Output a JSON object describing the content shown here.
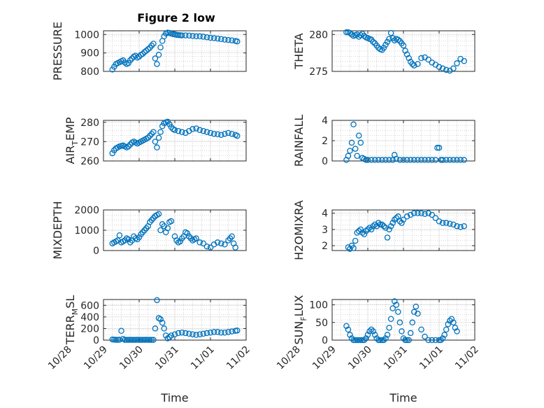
{
  "figure": {
    "title": "Figure 2 low",
    "background": "#ffffff",
    "marker_color": "#0072BD",
    "axis_color": "#262626",
    "grid_color": "#b0b0b0"
  },
  "chart_data": [
    {
      "type": "scatter",
      "id": "pressure",
      "title": "Figure 2 low",
      "ylabel": "PRESSURE",
      "ylim": [
        800,
        1020
      ],
      "yticks": [
        800,
        900,
        1000
      ],
      "ytick_labels": [
        "800",
        "900",
        "1000"
      ],
      "xlim": [
        0,
        4
      ],
      "xtick_labels": [],
      "xlabel": "",
      "grid": true,
      "series": [
        {
          "x": [
            0.25,
            0.3,
            0.35,
            0.4,
            0.45,
            0.5,
            0.55,
            0.6,
            0.65,
            0.7,
            0.75,
            0.8,
            0.85,
            0.9,
            0.95,
            1.0,
            1.05,
            1.1,
            1.15,
            1.2,
            1.25,
            1.3,
            1.35,
            1.4,
            1.45,
            1.5,
            1.55,
            1.6,
            1.65,
            1.7,
            1.75,
            1.8,
            1.85,
            1.9,
            1.95,
            2.0,
            2.05,
            2.1,
            2.15,
            2.2,
            2.3,
            2.4,
            2.5,
            2.6,
            2.7,
            2.8,
            2.9,
            3.0,
            3.1,
            3.2,
            3.3,
            3.4,
            3.5,
            3.6,
            3.7,
            3.75
          ],
          "y": [
            810,
            825,
            840,
            845,
            850,
            855,
            860,
            848,
            840,
            845,
            860,
            870,
            880,
            885,
            875,
            880,
            890,
            895,
            905,
            912,
            920,
            928,
            940,
            950,
            870,
            840,
            890,
            930,
            965,
            990,
            1005,
            1010,
            1008,
            1005,
            1002,
            1000,
            998,
            997,
            996,
            995,
            995,
            994,
            992,
            990,
            990,
            988,
            985,
            982,
            980,
            978,
            975,
            972,
            970,
            968,
            965,
            962
          ]
        }
      ]
    },
    {
      "type": "scatter",
      "id": "theta",
      "ylabel": "THETA",
      "ylim": [
        275,
        280.5
      ],
      "yticks": [
        275,
        280
      ],
      "ytick_labels": [
        "275",
        "280"
      ],
      "xlim": [
        0,
        4
      ],
      "xtick_labels": [],
      "xlabel": "",
      "grid": true,
      "series": [
        {
          "x": [
            0.4,
            0.45,
            0.5,
            0.55,
            0.6,
            0.65,
            0.7,
            0.75,
            0.8,
            0.85,
            0.9,
            0.95,
            1.0,
            1.05,
            1.1,
            1.15,
            1.2,
            1.25,
            1.3,
            1.35,
            1.4,
            1.45,
            1.5,
            1.55,
            1.6,
            1.65,
            1.7,
            1.75,
            1.8,
            1.85,
            1.9,
            1.95,
            2.0,
            2.05,
            2.1,
            2.15,
            2.2,
            2.25,
            2.3,
            2.4,
            2.5,
            2.6,
            2.7,
            2.8,
            2.9,
            3.0,
            3.1,
            3.2,
            3.3,
            3.4,
            3.5,
            3.6,
            3.7
          ],
          "y": [
            280.3,
            280.3,
            280.2,
            280.0,
            279.8,
            279.9,
            280.0,
            279.7,
            279.9,
            280.1,
            279.8,
            279.6,
            279.5,
            279.4,
            279.3,
            279.0,
            278.8,
            278.5,
            278.2,
            278.0,
            277.9,
            278.2,
            278.6,
            279.0,
            279.4,
            280.2,
            279.5,
            279.2,
            279.4,
            279.3,
            279.1,
            278.8,
            278.5,
            277.8,
            277.3,
            276.8,
            276.3,
            276.0,
            275.8,
            276.0,
            276.8,
            276.9,
            276.6,
            276.2,
            275.9,
            275.6,
            275.4,
            275.2,
            275.1,
            275.4,
            276.1,
            276.7,
            276.4
          ]
        }
      ]
    },
    {
      "type": "scatter",
      "id": "air_temp",
      "ylabel_main": "AIR",
      "ylabel_sub": "T",
      "ylabel_rest": "EMP",
      "ylim": [
        260,
        281
      ],
      "yticks": [
        260,
        270,
        280
      ],
      "ytick_labels": [
        "260",
        "270",
        "280"
      ],
      "xlim": [
        0,
        4
      ],
      "xtick_labels": [],
      "xlabel": "",
      "grid": true,
      "series": [
        {
          "x": [
            0.25,
            0.3,
            0.35,
            0.4,
            0.45,
            0.5,
            0.55,
            0.6,
            0.65,
            0.7,
            0.75,
            0.8,
            0.85,
            0.9,
            0.95,
            1.0,
            1.05,
            1.1,
            1.15,
            1.2,
            1.25,
            1.3,
            1.35,
            1.4,
            1.45,
            1.5,
            1.55,
            1.6,
            1.65,
            1.7,
            1.75,
            1.8,
            1.85,
            1.9,
            1.95,
            2.0,
            2.1,
            2.2,
            2.3,
            2.4,
            2.5,
            2.6,
            2.7,
            2.8,
            2.9,
            3.0,
            3.1,
            3.2,
            3.3,
            3.4,
            3.5,
            3.6,
            3.7,
            3.75
          ],
          "y": [
            264,
            265.5,
            266.5,
            267,
            267.5,
            267.8,
            268,
            267.5,
            267,
            267.5,
            268.5,
            269.5,
            270,
            269.5,
            269,
            269.5,
            270,
            270.5,
            271,
            271.5,
            272,
            273,
            274,
            275,
            270,
            267,
            272,
            275,
            278,
            279.5,
            280,
            280.3,
            279,
            277.5,
            276.5,
            276,
            275.5,
            275,
            274.5,
            275.5,
            276.5,
            276.8,
            276,
            275.5,
            275,
            274.5,
            274,
            273.8,
            273.5,
            274,
            274.5,
            274,
            273.5,
            273
          ]
        }
      ]
    },
    {
      "type": "scatter",
      "id": "rainfall",
      "ylabel": "RAINFALL",
      "ylim": [
        0,
        4
      ],
      "yticks": [
        0,
        2,
        4
      ],
      "ytick_labels": [
        "0",
        "2",
        "4"
      ],
      "xlim": [
        0,
        4
      ],
      "xtick_labels": [],
      "xlabel": "",
      "grid": true,
      "series": [
        {
          "x": [
            0.4,
            0.45,
            0.5,
            0.55,
            0.6,
            0.65,
            0.7,
            0.75,
            0.8,
            0.85,
            0.9,
            0.95,
            1.0,
            1.1,
            1.2,
            1.3,
            1.4,
            1.5,
            1.6,
            1.7,
            1.75,
            1.8,
            1.9,
            2.0,
            2.1,
            2.2,
            2.3,
            2.4,
            2.5,
            2.6,
            2.7,
            2.8,
            2.9,
            2.95,
            3.0,
            3.05,
            3.1,
            3.2,
            3.3,
            3.4,
            3.5,
            3.6,
            3.7
          ],
          "y": [
            0.1,
            0.5,
            1.0,
            1.8,
            3.6,
            1.2,
            0.5,
            2.5,
            1.8,
            0.3,
            0.2,
            0.1,
            0.1,
            0.1,
            0.1,
            0.1,
            0.1,
            0.1,
            0.1,
            0.1,
            0.6,
            0.2,
            0.1,
            0.1,
            0.1,
            0.1,
            0.1,
            0.1,
            0.1,
            0.1,
            0.1,
            0.1,
            0.1,
            1.3,
            1.3,
            0.1,
            0.1,
            0.1,
            0.1,
            0.1,
            0.1,
            0.1,
            0.1
          ]
        }
      ]
    },
    {
      "type": "scatter",
      "id": "mixdepth",
      "ylabel": "MIXDEPTH",
      "ylim": [
        0,
        2000
      ],
      "yticks": [
        0,
        1000,
        2000
      ],
      "ytick_labels": [
        "0",
        "1000",
        "2000"
      ],
      "xlim": [
        0,
        4
      ],
      "xtick_labels": [],
      "xlabel": "",
      "grid": true,
      "series": [
        {
          "x": [
            0.25,
            0.3,
            0.35,
            0.4,
            0.45,
            0.5,
            0.55,
            0.6,
            0.65,
            0.7,
            0.75,
            0.8,
            0.85,
            0.9,
            0.95,
            1.0,
            1.05,
            1.1,
            1.15,
            1.2,
            1.25,
            1.3,
            1.35,
            1.4,
            1.45,
            1.5,
            1.55,
            1.6,
            1.65,
            1.7,
            1.75,
            1.8,
            1.85,
            1.9,
            2.0,
            2.05,
            2.1,
            2.15,
            2.2,
            2.25,
            2.3,
            2.35,
            2.4,
            2.45,
            2.5,
            2.55,
            2.6,
            2.7,
            2.8,
            2.9,
            3.0,
            3.1,
            3.2,
            3.3,
            3.4,
            3.5,
            3.55,
            3.6,
            3.65,
            3.7
          ],
          "y": [
            350,
            400,
            450,
            500,
            750,
            400,
            450,
            500,
            600,
            550,
            400,
            500,
            700,
            600,
            550,
            650,
            800,
            900,
            1000,
            1100,
            1200,
            1400,
            1500,
            1600,
            1700,
            1750,
            1800,
            1000,
            1300,
            1200,
            900,
            1100,
            1400,
            1450,
            700,
            500,
            400,
            450,
            600,
            700,
            900,
            850,
            700,
            600,
            500,
            550,
            600,
            400,
            350,
            200,
            150,
            300,
            400,
            350,
            300,
            500,
            600,
            700,
            350,
            150
          ]
        }
      ]
    },
    {
      "type": "scatter",
      "id": "h2omixra",
      "ylabel": "H2OMIXRA",
      "ylim": [
        1.7,
        4.2
      ],
      "yticks": [
        2,
        3,
        4
      ],
      "ytick_labels": [
        "2",
        "3",
        "4"
      ],
      "xlim": [
        0,
        4
      ],
      "xtick_labels": [],
      "xlabel": "",
      "grid": true,
      "series": [
        {
          "x": [
            0.45,
            0.5,
            0.55,
            0.6,
            0.65,
            0.7,
            0.75,
            0.8,
            0.85,
            0.9,
            0.95,
            1.0,
            1.05,
            1.1,
            1.15,
            1.2,
            1.25,
            1.3,
            1.35,
            1.4,
            1.45,
            1.5,
            1.55,
            1.6,
            1.65,
            1.7,
            1.75,
            1.8,
            1.85,
            1.9,
            1.95,
            2.0,
            2.1,
            2.2,
            2.3,
            2.4,
            2.5,
            2.6,
            2.7,
            2.8,
            2.9,
            3.0,
            3.1,
            3.2,
            3.3,
            3.4,
            3.5,
            3.6,
            3.7
          ],
          "y": [
            1.9,
            1.8,
            2.0,
            1.85,
            2.3,
            2.8,
            2.9,
            3.0,
            2.8,
            2.7,
            2.9,
            3.0,
            3.1,
            3.0,
            3.2,
            3.3,
            3.2,
            3.4,
            3.3,
            3.3,
            3.2,
            3.1,
            2.5,
            3.0,
            3.2,
            3.4,
            3.6,
            3.7,
            3.8,
            3.5,
            3.4,
            3.6,
            3.8,
            3.9,
            4.0,
            4.0,
            4.0,
            3.95,
            4.0,
            3.9,
            3.7,
            3.5,
            3.4,
            3.4,
            3.35,
            3.3,
            3.2,
            3.15,
            3.2
          ]
        }
      ]
    },
    {
      "type": "scatter",
      "id": "terr_msl",
      "ylabel_main": "TERR",
      "ylabel_sub": "M",
      "ylabel_rest": "SL",
      "ylim": [
        0,
        700
      ],
      "yticks": [
        0,
        200,
        400,
        600
      ],
      "ytick_labels": [
        "0",
        "200",
        "400",
        "600"
      ],
      "xlim": [
        0,
        4
      ],
      "xtick_labels": [
        "10/28",
        "10/29",
        "10/30",
        "10/31",
        "11/01",
        "11/02"
      ],
      "xlabel": "Time",
      "grid": true,
      "series": [
        {
          "x": [
            0.25,
            0.3,
            0.35,
            0.4,
            0.45,
            0.5,
            0.55,
            0.6,
            0.65,
            0.7,
            0.75,
            0.8,
            0.85,
            0.9,
            0.95,
            1.0,
            1.05,
            1.1,
            1.15,
            1.2,
            1.25,
            1.3,
            1.35,
            1.4,
            1.45,
            1.5,
            1.55,
            1.6,
            1.65,
            1.7,
            1.75,
            1.8,
            1.85,
            1.9,
            2.0,
            2.1,
            2.2,
            2.3,
            2.4,
            2.5,
            2.6,
            2.7,
            2.8,
            2.9,
            3.0,
            3.1,
            3.2,
            3.3,
            3.4,
            3.5,
            3.6,
            3.7,
            3.75
          ],
          "y": [
            10,
            8,
            6,
            5,
            8,
            160,
            20,
            5,
            4,
            5,
            6,
            5,
            4,
            5,
            6,
            5,
            4,
            5,
            5,
            6,
            5,
            5,
            5,
            4,
            200,
            690,
            380,
            360,
            300,
            200,
            80,
            30,
            50,
            80,
            100,
            120,
            130,
            120,
            110,
            100,
            90,
            100,
            110,
            120,
            130,
            140,
            140,
            130,
            130,
            140,
            150,
            160,
            165
          ]
        }
      ]
    },
    {
      "type": "scatter",
      "id": "sun_flux",
      "ylabel_main": "SUN",
      "ylabel_sub": "F",
      "ylabel_rest": "LUX",
      "ylim": [
        0,
        115
      ],
      "yticks": [
        0,
        50,
        100
      ],
      "ytick_labels": [
        "0",
        "50",
        "100"
      ],
      "xlim": [
        0,
        4
      ],
      "xtick_labels": [
        "10/28",
        "10/29",
        "10/30",
        "10/31",
        "11/01",
        "11/02"
      ],
      "xlabel": "Time",
      "grid": true,
      "series": [
        {
          "x": [
            0.4,
            0.45,
            0.5,
            0.55,
            0.6,
            0.65,
            0.7,
            0.75,
            0.8,
            0.85,
            0.9,
            0.95,
            1.0,
            1.05,
            1.1,
            1.15,
            1.2,
            1.25,
            1.3,
            1.35,
            1.4,
            1.45,
            1.5,
            1.55,
            1.6,
            1.65,
            1.7,
            1.75,
            1.8,
            1.85,
            1.9,
            1.95,
            2.0,
            2.05,
            2.1,
            2.15,
            2.2,
            2.25,
            2.3,
            2.35,
            2.4,
            2.5,
            2.6,
            2.7,
            2.8,
            2.9,
            3.0,
            3.05,
            3.1,
            3.15,
            3.2,
            3.25,
            3.3,
            3.35,
            3.4,
            3.45,
            3.5
          ],
          "y": [
            40,
            30,
            15,
            5,
            0,
            0,
            0,
            0,
            0,
            0,
            0,
            5,
            15,
            25,
            30,
            25,
            15,
            5,
            0,
            0,
            0,
            0,
            5,
            15,
            35,
            60,
            90,
            110,
            100,
            80,
            50,
            25,
            5,
            0,
            0,
            0,
            20,
            50,
            80,
            95,
            75,
            30,
            10,
            0,
            0,
            0,
            0,
            0,
            5,
            15,
            30,
            45,
            55,
            60,
            50,
            35,
            25
          ]
        }
      ]
    }
  ]
}
